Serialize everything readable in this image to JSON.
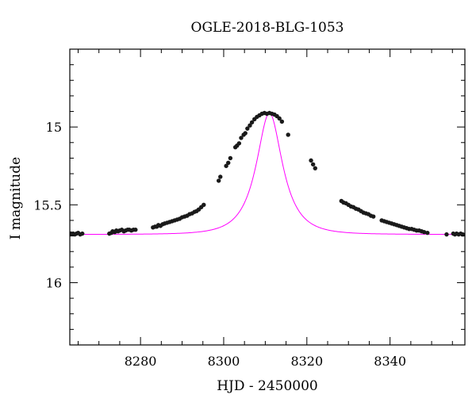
{
  "chart_data": {
    "type": "scatter",
    "title": "OGLE-2018-BLG-1053",
    "xlabel": "HJD - 2450000",
    "ylabel": "I magnitude",
    "xlim": [
      8263,
      8358
    ],
    "ylim": [
      16.4,
      14.5
    ],
    "y_inverted": true,
    "x_ticks": [
      8280,
      8300,
      8320,
      8340
    ],
    "y_ticks": [
      15,
      15.5,
      16
    ],
    "y_tick_labels": [
      "15",
      "15.5",
      "16"
    ],
    "grid": false,
    "colors": {
      "points": "#1a1a1a",
      "model": "#ff00ff",
      "axes": "#000000"
    },
    "model": {
      "t0": 8311,
      "base_mag": 15.69,
      "peak_mag": 14.91,
      "tE": 6.2,
      "curve_color": "#ff00ff"
    },
    "series": [
      {
        "x": [
          8263.3,
          8263.8,
          8264.2,
          8264.6,
          8265.0,
          8265.5,
          8266.0,
          8272.5,
          8273.0,
          8273.3,
          8273.8,
          8274.2,
          8274.6,
          8275.0,
          8275.5,
          8276.0,
          8276.4,
          8276.9,
          8277.3,
          8277.8,
          8278.3,
          8278.8,
          8283.0,
          8283.5,
          8283.9,
          8284.3,
          8284.8,
          8285.3,
          8285.8,
          8286.4,
          8287.0,
          8287.6,
          8288.2,
          8288.8,
          8289.4,
          8290.0,
          8290.6,
          8291.2,
          8291.8,
          8292.4,
          8293.0,
          8293.5,
          8294.0,
          8294.6,
          8295.2,
          8298.8,
          8299.2,
          8300.6,
          8301.1,
          8301.6,
          8302.8,
          8303.2,
          8303.7,
          8304.2,
          8304.8,
          8305.2,
          8305.7,
          8306.3,
          8306.8,
          8307.4,
          8308.0,
          8308.6,
          8309.2,
          8309.8,
          8310.4,
          8311.0,
          8311.6,
          8312.2,
          8312.8,
          8313.4,
          8314.0,
          8315.5,
          8321.0,
          8321.5,
          8322.0,
          8328.3,
          8328.8,
          8329.4,
          8330.0,
          8330.6,
          8331.2,
          8331.8,
          8332.4,
          8333.0,
          8333.6,
          8334.2,
          8334.8,
          8335.4,
          8336.0,
          8338.0,
          8338.6,
          8339.2,
          8339.8,
          8340.4,
          8341.0,
          8341.6,
          8342.2,
          8342.8,
          8343.4,
          8344.0,
          8344.6,
          8345.2,
          8345.8,
          8346.4,
          8347.0,
          8347.6,
          8348.2,
          8349.0,
          8353.6,
          8355.2,
          8355.6,
          8356.0,
          8356.5,
          8357.0,
          8357.5
        ],
        "y": [
          15.685,
          15.685,
          15.69,
          15.685,
          15.68,
          15.69,
          15.685,
          15.685,
          15.68,
          15.67,
          15.675,
          15.665,
          15.67,
          15.665,
          15.66,
          15.67,
          15.665,
          15.66,
          15.66,
          15.665,
          15.66,
          15.66,
          15.645,
          15.64,
          15.64,
          15.63,
          15.635,
          15.625,
          15.62,
          15.615,
          15.61,
          15.605,
          15.6,
          15.595,
          15.59,
          15.58,
          15.575,
          15.57,
          15.56,
          15.555,
          15.545,
          15.54,
          15.53,
          15.515,
          15.5,
          15.345,
          15.32,
          15.25,
          15.23,
          15.2,
          15.13,
          15.12,
          15.105,
          15.07,
          15.05,
          15.04,
          15.01,
          14.99,
          14.97,
          14.95,
          14.935,
          14.925,
          14.915,
          14.91,
          14.915,
          14.91,
          14.915,
          14.92,
          14.93,
          14.945,
          14.965,
          15.05,
          15.215,
          15.24,
          15.265,
          15.475,
          15.485,
          15.49,
          15.5,
          15.51,
          15.515,
          15.525,
          15.53,
          15.54,
          15.55,
          15.555,
          15.56,
          15.57,
          15.575,
          15.6,
          15.605,
          15.61,
          15.615,
          15.62,
          15.625,
          15.63,
          15.635,
          15.64,
          15.645,
          15.65,
          15.655,
          15.655,
          15.66,
          15.665,
          15.665,
          15.67,
          15.675,
          15.68,
          15.69,
          15.685,
          15.69,
          15.685,
          15.69,
          15.685,
          15.69
        ]
      }
    ]
  }
}
